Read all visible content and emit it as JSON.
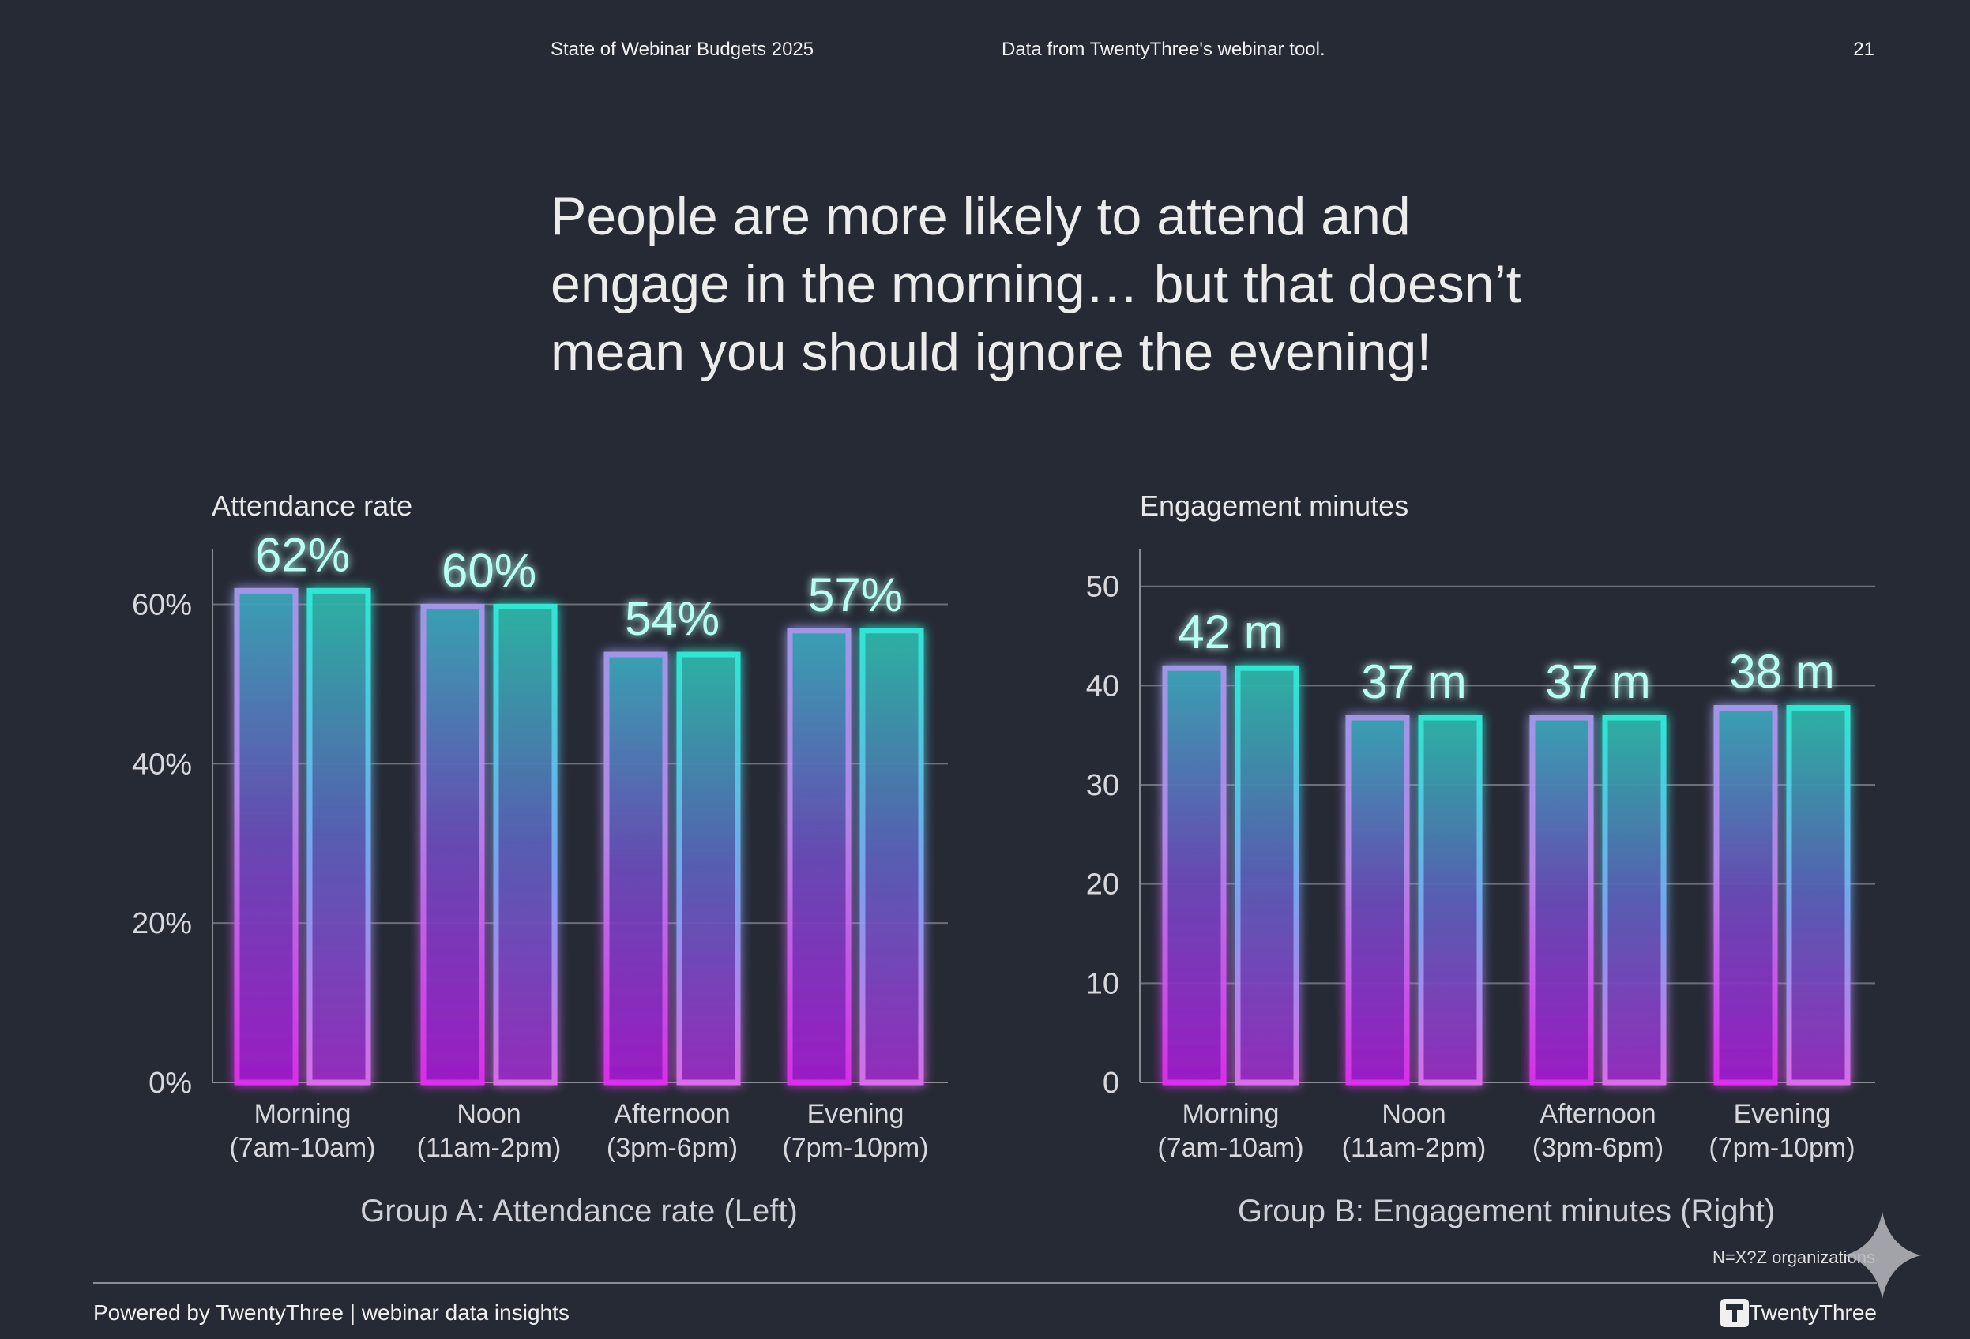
{
  "header": {
    "report_title": "State of Webinar Budgets 2025",
    "source": "Data from TwentyThree's webinar tool.",
    "page_number": "21"
  },
  "headline": {
    "lines": [
      "People are more likely to attend and",
      "engage in the morning… but that doesn’t",
      "mean you should ignore the evening!"
    ]
  },
  "colors": {
    "background": "#262a35",
    "bar_bottom": "#d62ee0",
    "bar_top_teal": "#2de8d2",
    "bar_mid_blue": "#7aa2f0",
    "label": "#b8fff2"
  },
  "chart_data": [
    {
      "type": "bar",
      "title": "Attendance rate",
      "caption": "Group A: Attendance rate (Left)",
      "categories": [
        [
          "Morning",
          "(7am-10am)"
        ],
        [
          "Noon",
          "(11am-2pm)"
        ],
        [
          "Afternoon",
          "(3pm-6pm)"
        ],
        [
          "Evening",
          "(7pm-10pm)"
        ]
      ],
      "values": [
        62,
        60,
        54,
        57
      ],
      "data_labels": [
        "62%",
        "60%",
        "54%",
        "57%"
      ],
      "bars_per_category": 2,
      "yticks": [
        "0%",
        "20%",
        "40%",
        "60%"
      ],
      "ytick_values": [
        0,
        20,
        40,
        60
      ],
      "ylim": [
        0,
        66
      ],
      "grid": true
    },
    {
      "type": "bar",
      "title": "Engagement minutes",
      "caption": "Group B: Engagement minutes (Right)",
      "categories": [
        [
          "Morning",
          "(7am-10am)"
        ],
        [
          "Noon",
          "(11am-2pm)"
        ],
        [
          "Afternoon",
          "(3pm-6pm)"
        ],
        [
          "Evening",
          "(7pm-10pm)"
        ]
      ],
      "values": [
        42,
        37,
        37,
        38
      ],
      "data_labels": [
        "42 m",
        "37 m",
        "37 m",
        "38 m"
      ],
      "bars_per_category": 2,
      "yticks": [
        "0",
        "10",
        "20",
        "30",
        "40",
        "50"
      ],
      "ytick_values": [
        0,
        10,
        20,
        30,
        40,
        50
      ],
      "ylim": [
        0,
        53
      ],
      "grid": true
    }
  ],
  "note": "N=X?Z organizations",
  "footer": {
    "powered_by": "Powered by TwentyThree | webinar data insights",
    "brand": "TwentyThree"
  }
}
